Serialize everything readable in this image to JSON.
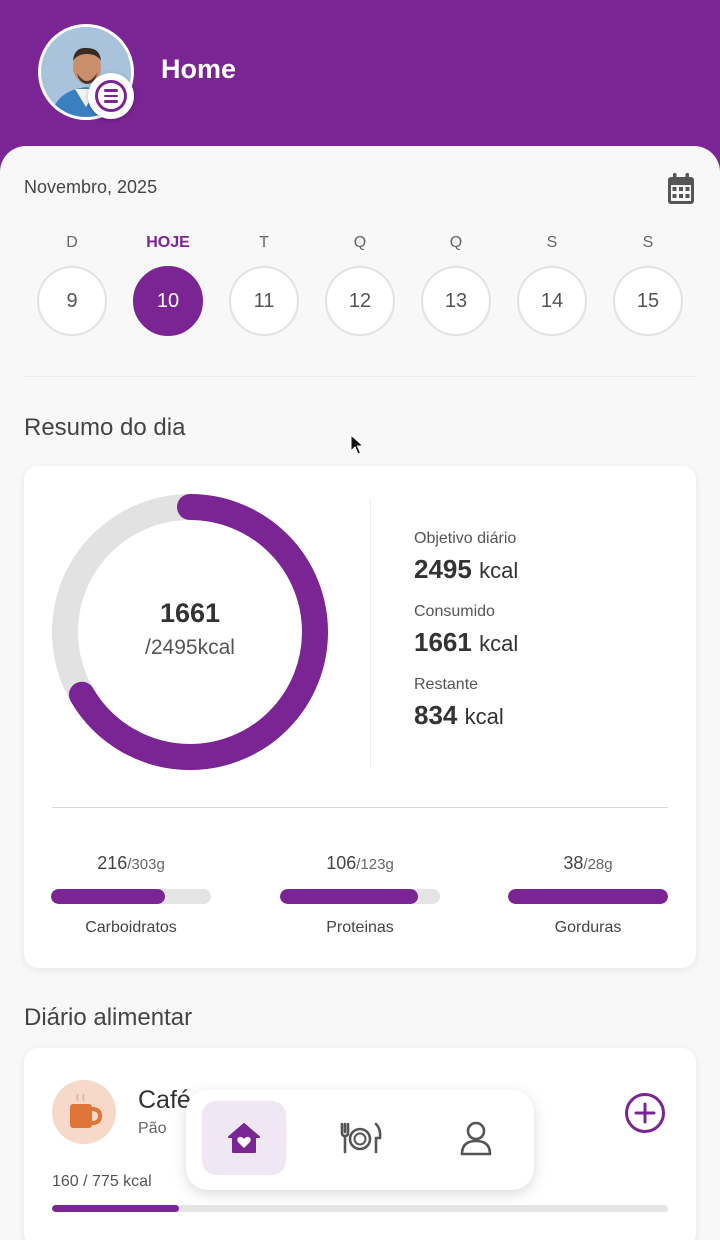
{
  "header": {
    "title": "Home"
  },
  "calendar": {
    "month_label": "Novembro, 2025",
    "days": [
      {
        "weekday": "D",
        "day": "9",
        "selected": false
      },
      {
        "weekday": "HOJE",
        "day": "10",
        "selected": true
      },
      {
        "weekday": "T",
        "day": "11",
        "selected": false
      },
      {
        "weekday": "Q",
        "day": "12",
        "selected": false
      },
      {
        "weekday": "Q",
        "day": "13",
        "selected": false
      },
      {
        "weekday": "S",
        "day": "14",
        "selected": false
      },
      {
        "weekday": "S",
        "day": "15",
        "selected": false
      }
    ]
  },
  "summary": {
    "title": "Resumo do dia",
    "consumed_value": "1661",
    "goal_text": "/2495kcal",
    "progress_fraction": 0.666,
    "stats": {
      "goal_label": "Objetivo diário",
      "goal_value": "2495",
      "consumed_label": "Consumido",
      "consumed_value": "1661",
      "remaining_label": "Restante",
      "remaining_value": "834",
      "unit": "kcal"
    },
    "macros": [
      {
        "name": "Carboidratos",
        "value": "216",
        "total": "/303g",
        "fraction": 0.713
      },
      {
        "name": "Proteinas",
        "value": "106",
        "total": "/123g",
        "fraction": 0.862
      },
      {
        "name": "Gorduras",
        "value": "38",
        "total": "/28g",
        "fraction": 1.0
      }
    ]
  },
  "diary": {
    "title": "Diário alimentar",
    "meal": {
      "name": "Café",
      "items": "Pão",
      "kcal_text": "160 / 775 kcal",
      "fraction": 0.206
    }
  },
  "icons": {
    "menu": "menu-icon",
    "calendar": "calendar-icon",
    "meal": "coffee-mug-icon",
    "add": "plus-circle-icon",
    "nav_home": "home-heart-icon",
    "nav_meals": "cutlery-plate-icon",
    "nav_profile": "person-icon"
  },
  "colors": {
    "accent": "#7b2494",
    "track": "#e4e4e4"
  }
}
